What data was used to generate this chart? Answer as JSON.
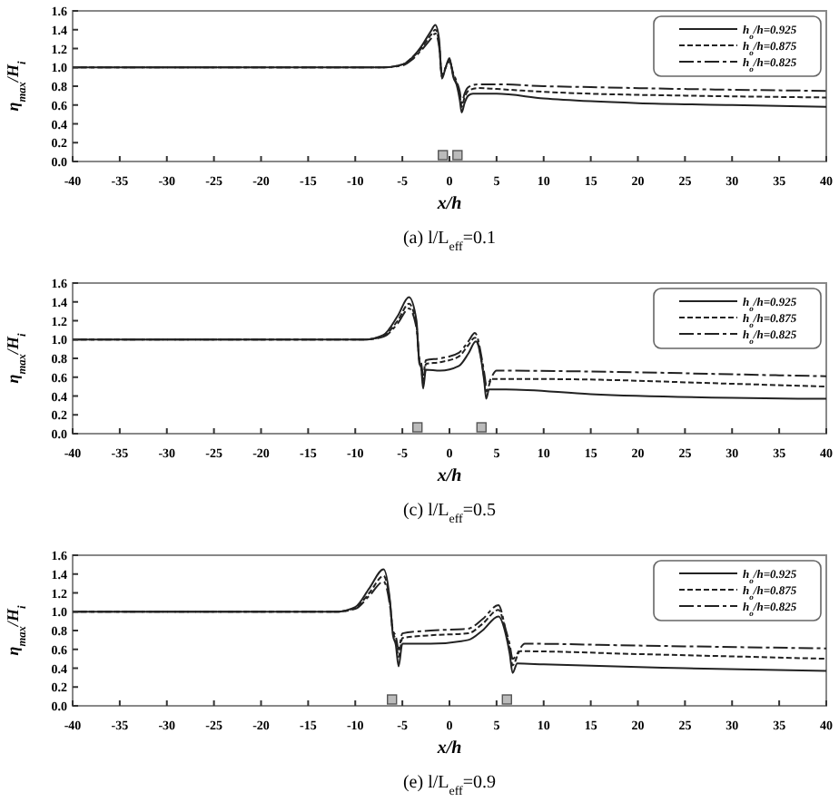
{
  "chart_data": [
    {
      "type": "line",
      "title": "(a)  l/L$_{eff}$=0.1",
      "xlabel": "x/h",
      "ylabel": "η$_{max}$/H$_{i}$",
      "xlim": [
        -40,
        40
      ],
      "ylim": [
        0,
        1.6
      ],
      "xticks": [
        -40,
        -35,
        -30,
        -25,
        -20,
        -15,
        -10,
        -5,
        0,
        5,
        10,
        15,
        20,
        25,
        30,
        35,
        40
      ],
      "yticks": [
        {
          "value": 0,
          "label": "0.0"
        },
        {
          "value": 0.2,
          "label": "0.2"
        },
        {
          "value": 0.4,
          "label": "0.4"
        },
        {
          "value": 0.6,
          "label": "0.6"
        },
        {
          "value": 0.8,
          "label": "0.8"
        },
        {
          "value": 1,
          "label": "1.0"
        },
        {
          "value": 1.2,
          "label": "1.2"
        },
        {
          "value": 1.4,
          "label": "1.4"
        },
        {
          "value": 1.6,
          "label": "1.6"
        }
      ],
      "legend": "top right",
      "grid": false,
      "series": [
        {
          "name": "h$_{o}$/h=0.925",
          "color": "#222222",
          "line_style": "solid",
          "x": [
            -40,
            -10,
            -7,
            -5,
            -4,
            -3,
            -2,
            -1.5,
            -1.1,
            -0.8,
            -0.4,
            0,
            0.4,
            0.8,
            1.1,
            1.3,
            1.6,
            2,
            2.5,
            5,
            10,
            15,
            20,
            30,
            40
          ],
          "values": [
            1,
            1,
            1,
            1.03,
            1.1,
            1.22,
            1.38,
            1.45,
            1.3,
            0.88,
            1.0,
            1.1,
            0.9,
            0.8,
            0.65,
            0.52,
            0.62,
            0.7,
            0.72,
            0.72,
            0.67,
            0.64,
            0.62,
            0.6,
            0.58
          ]
        },
        {
          "name": "h$_{o}$/h=0.875",
          "color": "#222222",
          "line_style": "dashed",
          "x": [
            -40,
            -10,
            -7,
            -5,
            -4,
            -3,
            -2,
            -1.5,
            -1.1,
            -0.8,
            -0.4,
            0,
            0.4,
            0.8,
            1.1,
            1.3,
            1.6,
            2,
            3,
            5,
            10,
            15,
            25,
            40
          ],
          "values": [
            1,
            1,
            1,
            1.03,
            1.1,
            1.2,
            1.34,
            1.4,
            1.26,
            0.9,
            1.0,
            1.08,
            0.92,
            0.82,
            0.7,
            0.58,
            0.68,
            0.75,
            0.78,
            0.77,
            0.74,
            0.72,
            0.7,
            0.68
          ]
        },
        {
          "name": "h$_{o}$/h=0.825",
          "color": "#222222",
          "line_style": "dashdot",
          "x": [
            -40,
            -10,
            -7,
            -5,
            -4,
            -3,
            -2,
            -1.5,
            -1.1,
            -0.8,
            -0.4,
            0,
            0.4,
            0.8,
            1.1,
            1.3,
            1.6,
            2,
            3,
            5,
            10,
            15,
            25,
            40
          ],
          "values": [
            1,
            1,
            1,
            1.02,
            1.08,
            1.18,
            1.3,
            1.36,
            1.22,
            0.92,
            1.0,
            1.06,
            0.94,
            0.84,
            0.74,
            0.62,
            0.72,
            0.79,
            0.82,
            0.82,
            0.8,
            0.79,
            0.77,
            0.75
          ]
        }
      ]
    },
    {
      "type": "line",
      "title": "(c)  l/L$_{eff}$=0.5",
      "xlabel": "x/h",
      "ylabel": "η$_{max}$/H$_{i}$",
      "xlim": [
        -40,
        40
      ],
      "ylim": [
        0,
        1.6
      ],
      "xticks": [
        -40,
        -35,
        -30,
        -25,
        -20,
        -15,
        -10,
        -5,
        0,
        5,
        10,
        15,
        20,
        25,
        30,
        35,
        40
      ],
      "yticks": [
        {
          "value": 0,
          "label": "0.0"
        },
        {
          "value": 0.2,
          "label": "0.2"
        },
        {
          "value": 0.4,
          "label": "0.4"
        },
        {
          "value": 0.6,
          "label": "0.6"
        },
        {
          "value": 0.8,
          "label": "0.8"
        },
        {
          "value": 1,
          "label": "1.0"
        },
        {
          "value": 1.2,
          "label": "1.2"
        },
        {
          "value": 1.4,
          "label": "1.4"
        },
        {
          "value": 1.6,
          "label": "1.6"
        }
      ],
      "legend": "top right",
      "grid": false,
      "series": [
        {
          "name": "h$_{o}$/h=0.925",
          "color": "#222222",
          "line_style": "solid",
          "x": [
            -40,
            -10,
            -9,
            -7,
            -5.5,
            -4.3,
            -3.5,
            -3.2,
            -3,
            -2.8,
            -2.5,
            -1,
            1,
            2,
            2.8,
            3.5,
            3.7,
            3.9,
            4.2,
            6,
            15,
            30,
            40
          ],
          "values": [
            1,
            1,
            1,
            1.05,
            1.25,
            1.45,
            1.2,
            0.75,
            0.7,
            0.48,
            0.68,
            0.67,
            0.72,
            0.85,
            0.98,
            0.7,
            0.55,
            0.37,
            0.47,
            0.47,
            0.42,
            0.38,
            0.37
          ]
        },
        {
          "name": "h$_{o}$/h=0.875",
          "color": "#222222",
          "line_style": "dashed",
          "x": [
            -40,
            -10,
            -9,
            -7,
            -5.5,
            -4.3,
            -3.5,
            -3.2,
            -3,
            -2.8,
            -2.5,
            -1,
            1,
            2,
            2.7,
            3.5,
            3.7,
            3.9,
            4.5,
            10,
            30,
            40
          ],
          "values": [
            1,
            1,
            1,
            1.04,
            1.2,
            1.38,
            1.15,
            0.78,
            0.72,
            0.55,
            0.74,
            0.76,
            0.82,
            0.94,
            1.02,
            0.72,
            0.58,
            0.45,
            0.58,
            0.58,
            0.53,
            0.5
          ]
        },
        {
          "name": "h$_{o}$/h=0.825",
          "color": "#222222",
          "line_style": "dashdot",
          "x": [
            -40,
            -10,
            -9,
            -7,
            -5.5,
            -4.3,
            -3.5,
            -3.2,
            -3,
            -2.8,
            -2.5,
            -1,
            1,
            2,
            2.7,
            3.5,
            3.7,
            3.9,
            5,
            15,
            35,
            40
          ],
          "values": [
            1,
            1,
            1,
            1.03,
            1.17,
            1.33,
            1.12,
            0.8,
            0.75,
            0.62,
            0.78,
            0.8,
            0.86,
            0.98,
            1.07,
            0.76,
            0.64,
            0.52,
            0.67,
            0.66,
            0.62,
            0.61
          ]
        }
      ]
    },
    {
      "type": "line",
      "title": "(e)  l/L$_{eff}$=0.9",
      "xlabel": "x/h",
      "ylabel": "η$_{max}$/H$_{i}$",
      "xlim": [
        -40,
        40
      ],
      "ylim": [
        0,
        1.6
      ],
      "xticks": [
        -40,
        -35,
        -30,
        -25,
        -20,
        -15,
        -10,
        -5,
        0,
        5,
        10,
        15,
        20,
        25,
        30,
        35,
        40
      ],
      "yticks": [
        {
          "value": 0,
          "label": "0.0"
        },
        {
          "value": 0.2,
          "label": "0.2"
        },
        {
          "value": 0.4,
          "label": "0.4"
        },
        {
          "value": 0.6,
          "label": "0.6"
        },
        {
          "value": 0.8,
          "label": "0.8"
        },
        {
          "value": 1,
          "label": "1.0"
        },
        {
          "value": 1.2,
          "label": "1.2"
        },
        {
          "value": 1.4,
          "label": "1.4"
        },
        {
          "value": 1.6,
          "label": "1.6"
        }
      ],
      "legend": "top right",
      "grid": false,
      "series": [
        {
          "name": "h$_{o}$/h=0.925",
          "color": "#222222",
          "line_style": "solid",
          "x": [
            -40,
            -13,
            -12,
            -10,
            -8.5,
            -7,
            -6.3,
            -6,
            -5.7,
            -5.4,
            -5,
            -2,
            2,
            3.5,
            5.2,
            6,
            6.4,
            6.7,
            7.2,
            10,
            25,
            40
          ],
          "values": [
            1,
            1,
            1,
            1.05,
            1.25,
            1.45,
            1.1,
            0.75,
            0.65,
            0.42,
            0.66,
            0.66,
            0.7,
            0.8,
            0.95,
            0.75,
            0.55,
            0.35,
            0.45,
            0.44,
            0.4,
            0.37
          ]
        },
        {
          "name": "h$_{o}$/h=0.875",
          "color": "#222222",
          "line_style": "dashed",
          "x": [
            -40,
            -13,
            -12,
            -10,
            -8.5,
            -7,
            -6.3,
            -6,
            -5.7,
            -5.4,
            -5,
            -2,
            2,
            3.5,
            5.2,
            6,
            6.4,
            6.7,
            7.5,
            20,
            40
          ],
          "values": [
            1,
            1,
            1,
            1.04,
            1.2,
            1.38,
            1.08,
            0.78,
            0.7,
            0.52,
            0.72,
            0.75,
            0.77,
            0.87,
            1.02,
            0.78,
            0.6,
            0.43,
            0.58,
            0.55,
            0.5
          ]
        },
        {
          "name": "h$_{o}$/h=0.825",
          "color": "#222222",
          "line_style": "dashdot",
          "x": [
            -40,
            -13,
            -12,
            -10,
            -8.5,
            -7,
            -6.3,
            -6,
            -5.7,
            -5.4,
            -5,
            -2,
            2,
            3.5,
            5.2,
            6,
            6.4,
            6.7,
            8,
            20,
            40
          ],
          "values": [
            1,
            1,
            1,
            1.03,
            1.17,
            1.32,
            1.05,
            0.8,
            0.74,
            0.6,
            0.77,
            0.8,
            0.82,
            0.92,
            1.07,
            0.8,
            0.65,
            0.5,
            0.66,
            0.64,
            0.61
          ]
        }
      ]
    }
  ]
}
